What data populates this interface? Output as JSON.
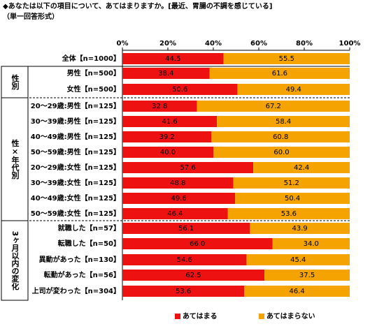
{
  "chart_data": {
    "type": "stacked-bar-horizontal",
    "title": "◆あなたは以下の項目について、あてはまりますか。[最近、胃腸の不調を感じている]",
    "subtitle": "（単一回答形式）",
    "categories": [
      "全体【n=1000】",
      "男性【n=500】",
      "女性【n=500】",
      "20～29歳:男性【n=125】",
      "30～39歳:男性【n=125】",
      "40～49歳:男性【n=125】",
      "50～59歳:男性【n=125】",
      "20～29歳:女性【n=125】",
      "30～39歳:女性【n=125】",
      "40～49歳:女性【n=125】",
      "50～59歳:女性【n=125】",
      "就職した【n=57】",
      "転職した【n=50】",
      "異動があった【n=130】",
      "転勤があった【n=56】",
      "上司が変わった【n=304】"
    ],
    "groups": [
      "性別",
      "性×年代別",
      "3ヶ月以内の変化"
    ],
    "series": [
      {
        "name": "あてはまる",
        "color": "#ee1111",
        "values": [
          44.5,
          38.4,
          50.6,
          32.8,
          41.6,
          39.2,
          40,
          57.6,
          48.8,
          49.6,
          46.4,
          56.1,
          66,
          54.6,
          62.5,
          53.6
        ],
        "value_labels": [
          "44.5",
          "38.4",
          "50.6",
          "32.8",
          "41.6",
          "39.2",
          "40.0",
          "57.6",
          "48.8",
          "49.6",
          "46.4",
          "56.1",
          "66.0",
          "54.6",
          "62.5",
          "53.6"
        ]
      },
      {
        "name": "あてはまらない",
        "color": "#f5a300",
        "values": [
          55.5,
          61.6,
          49.4,
          67.2,
          58.4,
          60.8,
          60,
          42.4,
          51.2,
          50.4,
          53.6,
          43.9,
          34,
          45.4,
          37.5,
          46.4
        ],
        "value_labels": [
          "55.5",
          "61.6",
          "49.4",
          "67.2",
          "58.4",
          "60.8",
          "60.0",
          "42.4",
          "51.2",
          "50.4",
          "53.6",
          "43.9",
          "34.0",
          "45.4",
          "37.5",
          "46.4"
        ]
      }
    ],
    "xlim": [
      0,
      100
    ],
    "xticks": [
      {
        "value": 0,
        "label": "0%"
      },
      {
        "value": 20,
        "label": "20%"
      },
      {
        "value": 40,
        "label": "40%"
      },
      {
        "value": 60,
        "label": "60%"
      },
      {
        "value": 80,
        "label": "80%"
      },
      {
        "value": 100,
        "label": "100%"
      }
    ]
  }
}
